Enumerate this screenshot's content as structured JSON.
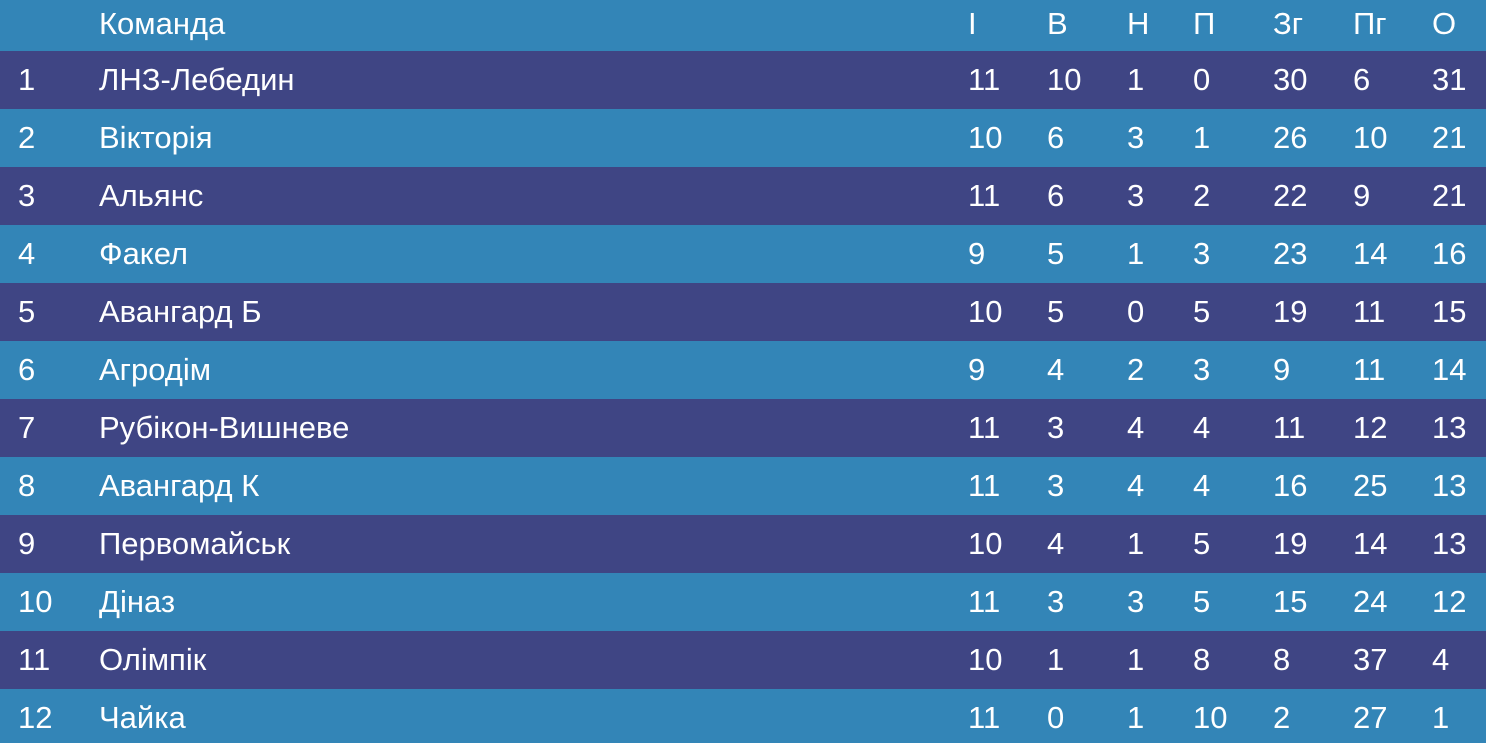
{
  "header": {
    "rank": "",
    "team": "Команда",
    "games": "І",
    "wins": "В",
    "draws": "Н",
    "losses": "П",
    "goals_for": "Зг",
    "goals_against": "Пг",
    "points": "О"
  },
  "rows": [
    {
      "rank": "1",
      "team": "ЛНЗ-Лебедин",
      "games": "11",
      "wins": "10",
      "draws": "1",
      "losses": "0",
      "goals_for": "30",
      "goals_against": "6",
      "points": "31"
    },
    {
      "rank": "2",
      "team": "Вікторія",
      "games": "10",
      "wins": "6",
      "draws": "3",
      "losses": "1",
      "goals_for": "26",
      "goals_against": "10",
      "points": "21"
    },
    {
      "rank": "3",
      "team": "Альянс",
      "games": "11",
      "wins": "6",
      "draws": "3",
      "losses": "2",
      "goals_for": "22",
      "goals_against": "9",
      "points": "21"
    },
    {
      "rank": "4",
      "team": "Факел",
      "games": "9",
      "wins": "5",
      "draws": "1",
      "losses": "3",
      "goals_for": "23",
      "goals_against": "14",
      "points": "16"
    },
    {
      "rank": "5",
      "team": "Авангард Б",
      "games": "10",
      "wins": "5",
      "draws": "0",
      "losses": "5",
      "goals_for": "19",
      "goals_against": "11",
      "points": "15"
    },
    {
      "rank": "6",
      "team": "Агродім",
      "games": "9",
      "wins": "4",
      "draws": "2",
      "losses": "3",
      "goals_for": "9",
      "goals_against": "11",
      "points": "14"
    },
    {
      "rank": "7",
      "team": "Рубікон-Вишневе",
      "games": "11",
      "wins": "3",
      "draws": "4",
      "losses": "4",
      "goals_for": "11",
      "goals_against": "12",
      "points": "13"
    },
    {
      "rank": "8",
      "team": "Авангард К",
      "games": "11",
      "wins": "3",
      "draws": "4",
      "losses": "4",
      "goals_for": "16",
      "goals_against": "25",
      "points": "13"
    },
    {
      "rank": "9",
      "team": "Первомайськ",
      "games": "10",
      "wins": "4",
      "draws": "1",
      "losses": "5",
      "goals_for": "19",
      "goals_against": "14",
      "points": "13"
    },
    {
      "rank": "10",
      "team": "Дiназ",
      "games": "11",
      "wins": "3",
      "draws": "3",
      "losses": "5",
      "goals_for": "15",
      "goals_against": "24",
      "points": "12"
    },
    {
      "rank": "11",
      "team": "Олімпік",
      "games": "10",
      "wins": "1",
      "draws": "1",
      "losses": "8",
      "goals_for": "8",
      "goals_against": "37",
      "points": "4"
    },
    {
      "rank": "12",
      "team": "Чайка",
      "games": "11",
      "wins": "0",
      "draws": "1",
      "losses": "10",
      "goals_for": "2",
      "goals_against": "27",
      "points": "1"
    }
  ],
  "colors": {
    "row_dark": "#3f4584",
    "row_light": "#3385b7",
    "text": "#ffffff"
  }
}
